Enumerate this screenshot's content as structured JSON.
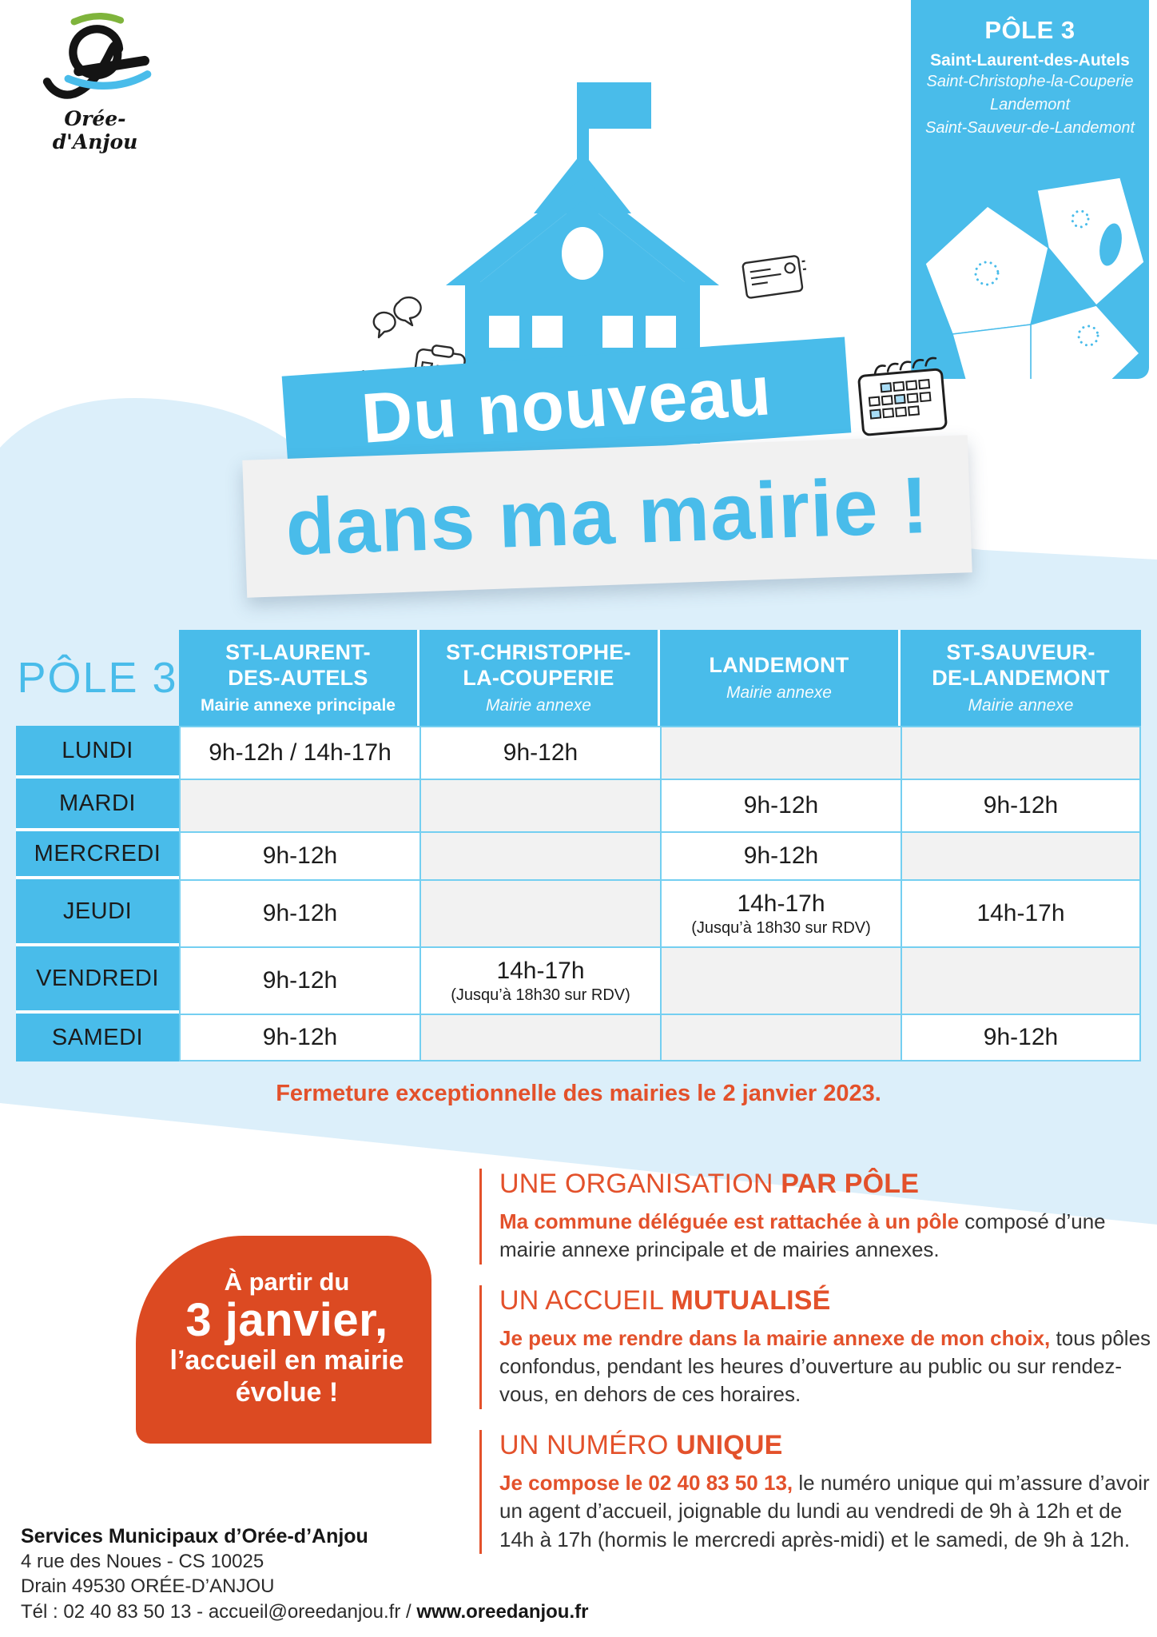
{
  "colors": {
    "accent_blue": "#49BCEA",
    "light_blue_bg": "#DCEFFA",
    "cell_line_blue": "#74CFF1",
    "empty_cell_gray": "#F2F2F2",
    "orange": "#E3512B",
    "blob_orange": "#DC4A22"
  },
  "logo": {
    "name": "Orée-d'Anjou"
  },
  "pole_card": {
    "title": "PÔLE 3",
    "main_commune": "Saint-Laurent-des-Autels",
    "communes": [
      "Saint-Christophe-la-Couperie",
      "Landemont",
      "Saint-Sauveur-de-Landemont"
    ]
  },
  "icons": {
    "speech": "speech-bubbles-icon",
    "phone": "phone-icon",
    "clipboard": "clipboard-checklist-icon",
    "card": "id-card-icon",
    "envelope": "envelope-icon",
    "calendar": "calendar-icon",
    "map": "pole-map-graphic"
  },
  "banner": {
    "line1": "Du nouveau",
    "line2": "dans ma mairie !"
  },
  "schedule": {
    "pole_label": "PÔLE 3",
    "columns": [
      {
        "name": "ST-LAURENT-\nDES-AUTELS",
        "subtitle": "Mairie annexe principale",
        "subtitle_style": "bold"
      },
      {
        "name": "ST-CHRISTOPHE-\nLA-COUPERIE",
        "subtitle": "Mairie annexe",
        "subtitle_style": "italic"
      },
      {
        "name": "LANDEMONT",
        "subtitle": "Mairie annexe",
        "subtitle_style": "italic"
      },
      {
        "name": "ST-SAUVEUR-\nDE-LANDEMONT",
        "subtitle": "Mairie annexe",
        "subtitle_style": "italic"
      }
    ],
    "rows": [
      {
        "day": "LUNDI",
        "cells": [
          {
            "time": "9h-12h / 14h-17h"
          },
          {
            "time": "9h-12h"
          },
          {},
          {}
        ]
      },
      {
        "day": "MARDI",
        "cells": [
          {},
          {},
          {
            "time": "9h-12h"
          },
          {
            "time": "9h-12h"
          }
        ]
      },
      {
        "day": "MERCREDI",
        "cells": [
          {
            "time": "9h-12h"
          },
          {},
          {
            "time": "9h-12h"
          },
          {}
        ]
      },
      {
        "day": "JEUDI",
        "cells": [
          {
            "time": "9h-12h"
          },
          {},
          {
            "time": "14h-17h",
            "note": "(Jusqu’à 18h30 sur RDV)"
          },
          {
            "time": "14h-17h"
          }
        ]
      },
      {
        "day": "VENDREDI",
        "cells": [
          {
            "time": "9h-12h"
          },
          {
            "time": "14h-17h",
            "note": "(Jusqu’à 18h30 sur RDV)"
          },
          {},
          {}
        ]
      },
      {
        "day": "SAMEDI",
        "cells": [
          {
            "time": "9h-12h"
          },
          {},
          {},
          {
            "time": "9h-12h"
          }
        ]
      }
    ],
    "closure_note": "Fermeture exceptionnelle des mairies le 2 janvier 2023."
  },
  "highlight": {
    "line1": "À partir du",
    "line2": "3 janvier,",
    "line3": "l’accueil en mairie",
    "line4": "évolue !"
  },
  "sections": [
    {
      "title_regular": "UNE ORGANISATION ",
      "title_bold": "PAR PÔLE",
      "lead": "Ma commune déléguée est rattachée à un pôle",
      "body": " composé d’une mairie annexe principale et de mairies annexes."
    },
    {
      "title_regular": "UN ACCUEIL ",
      "title_bold": "MUTUALISÉ",
      "lead": "Je peux me rendre dans la mairie annexe de mon choix,",
      "body": " tous pôles confondus, pendant les heures d’ouverture au public ou sur rendez-vous, en dehors de ces horaires."
    },
    {
      "title_regular": "UN NUMÉRO ",
      "title_bold": "UNIQUE",
      "lead": "Je compose le 02 40 83 50 13,",
      "body": " le numéro unique qui m’assure d’avoir un agent d’accueil, joignable du lundi au vendredi de 9h à 12h et de 14h à 17h (hormis le mercredi après-midi) et le samedi, de 9h à 12h."
    }
  ],
  "footer": {
    "org": "Services Municipaux d’Orée-d’Anjou",
    "address1": "4 rue des Noues - CS 10025",
    "address2": "Drain 49530 ORÉE-D’ANJOU",
    "tel_prefix": "Tél : 02 40 83 50 13 - accueil@oreedanjou.fr / ",
    "website": "www.oreedanjou.fr"
  }
}
